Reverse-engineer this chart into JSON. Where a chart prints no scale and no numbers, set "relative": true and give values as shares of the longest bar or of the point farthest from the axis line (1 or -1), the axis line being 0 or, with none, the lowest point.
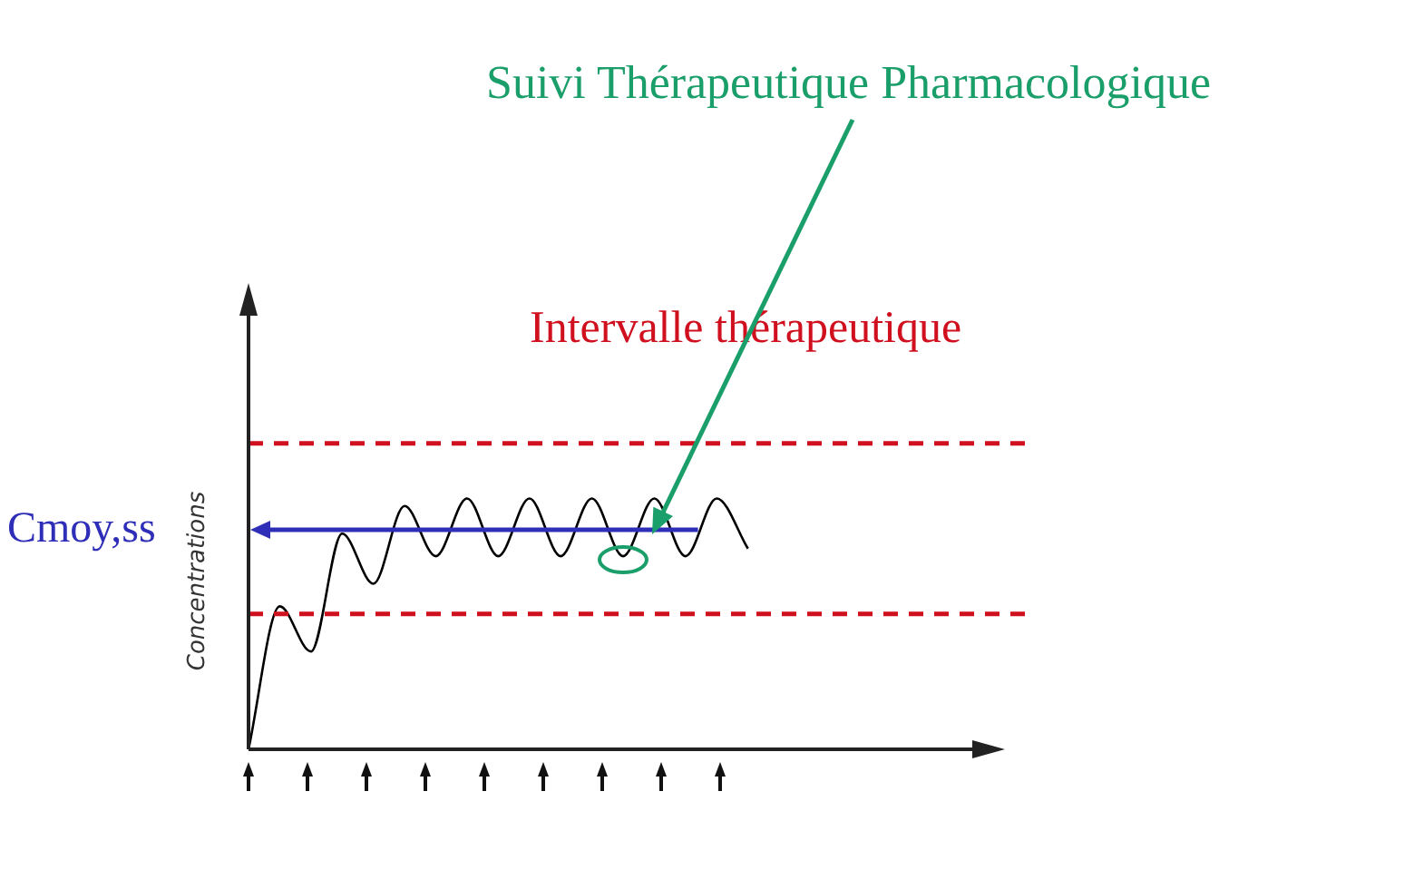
{
  "chart_data": {
    "type": "line",
    "relative": true,
    "ylabel": "Concentrations",
    "categories": [
      null,
      null,
      null,
      null,
      null,
      null,
      null,
      null,
      null,
      null,
      null,
      null,
      null,
      null,
      null,
      null,
      null,
      null,
      null,
      null,
      null,
      null,
      null,
      null,
      null
    ],
    "series": [
      {
        "color": "#000000",
        "values": [
          0,
          0.57,
          0.39,
          0.86,
          0.66,
          0.97,
          0.77,
          1,
          0.77,
          1,
          0.77,
          1,
          0.77,
          1,
          0.77,
          1,
          0.8,
          null,
          null,
          null,
          null,
          null,
          null,
          null,
          null
        ]
      }
    ],
    "ref_lines": [
      {
        "axis": "y",
        "value": 1.22,
        "label": "Intervalle thérapeutique",
        "color": "#d0101e",
        "line_style": "dashed"
      },
      {
        "axis": "y",
        "value": 0.54,
        "color": "#d0101e",
        "line_style": "dashed"
      },
      {
        "axis": "y",
        "value": 0.875,
        "label": "Cmoy,ss",
        "color": "#2e2eb8",
        "line_style": "solid"
      }
    ],
    "annotations": [
      "Suivi Thérapeutique Pharmacologique"
    ],
    "marker": "none",
    "legend": false
  }
}
